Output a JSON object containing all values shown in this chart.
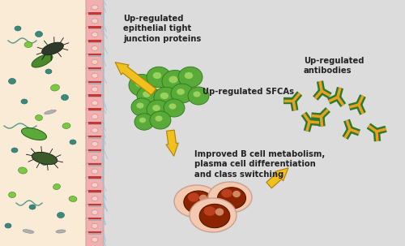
{
  "bg_color": "#dcdcdc",
  "skin_bg": "#faebd7",
  "cell_pink": "#f0b0b0",
  "cell_edge": "#d09090",
  "cell_red": "#cc3333",
  "cell_gray_bar": "#aaaaaa",
  "cilia_color": "#88ccdd",
  "bacteria_teal": "#3a8a7a",
  "bacteria_dark_green": "#3a6a2a",
  "bacteria_light_green": "#7bc842",
  "sfca_green": "#5aaa3a",
  "sfca_highlight": "#aadd66",
  "b_cell_outer": "#f5c8b0",
  "b_cell_inner": "#8b2500",
  "b_cell_highlight": "#e06030",
  "antibody_green": "#2d7a2d",
  "antibody_orange": "#e8a020",
  "arrow_fill": "#f0c020",
  "arrow_edge": "#b08000",
  "text_color": "#222222",
  "label_tight": "Up-regulated\nepithelial tight\njunction proteins",
  "label_sfca": "Up-regulated SFCAs",
  "label_bcell": "Improved B cell metabolism,\nplasma cell differentiation\nand class switching",
  "label_antibody": "Up-regulated\nantibodies",
  "font_size": 7.2
}
